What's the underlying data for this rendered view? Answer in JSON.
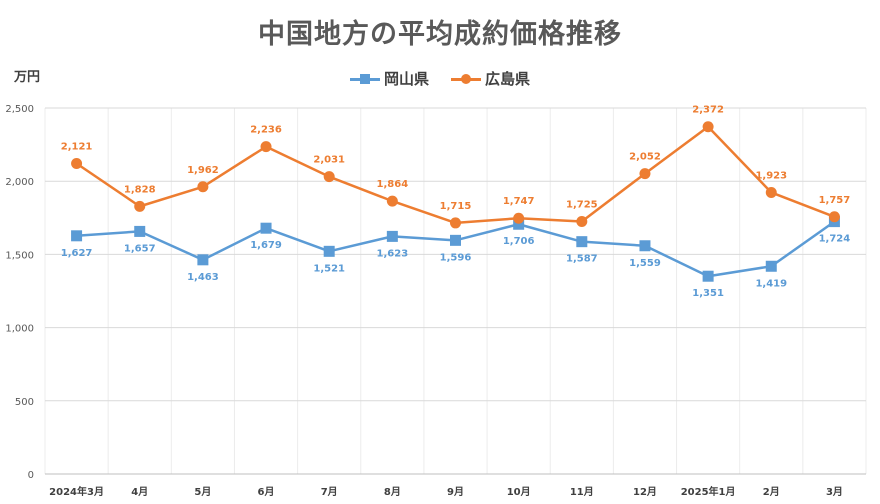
{
  "chart_data": {
    "type": "line",
    "title": "中国地方の平均成約価格推移",
    "ylabel": "万円",
    "xlabel": "",
    "categories": [
      "2024年3月",
      "4月",
      "5月",
      "6月",
      "7月",
      "8月",
      "9月",
      "10月",
      "11月",
      "12月",
      "2025年1月",
      "2月",
      "3月"
    ],
    "ylim": [
      0,
      2500
    ],
    "yticks": [
      0,
      500,
      1000,
      1500,
      2000,
      2500
    ],
    "ytick_labels": [
      "0",
      "500",
      "1,000",
      "1,500",
      "2,000",
      "2,500"
    ],
    "grid": true,
    "legend_position": "top",
    "series": [
      {
        "name": "岡山県",
        "color": "#5B9BD5",
        "marker": "square",
        "values": [
          1627,
          1657,
          1463,
          1679,
          1521,
          1623,
          1596,
          1706,
          1587,
          1559,
          1351,
          1419,
          1724
        ],
        "labels": [
          "1,627",
          "1,657",
          "1,463",
          "1,679",
          "1,521",
          "1,623",
          "1,596",
          "1,706",
          "1,587",
          "1,559",
          "1,351",
          "1,419",
          "1,724"
        ]
      },
      {
        "name": "広島県",
        "color": "#ED7D31",
        "marker": "circle",
        "values": [
          2121,
          1828,
          1962,
          2236,
          2031,
          1864,
          1715,
          1747,
          1725,
          2052,
          2372,
          1923,
          1757
        ],
        "labels": [
          "2,121",
          "1,828",
          "1,962",
          "2,236",
          "2,031",
          "1,864",
          "1,715",
          "1,747",
          "1,725",
          "2,052",
          "2,372",
          "1,923",
          "1,757"
        ]
      }
    ]
  }
}
